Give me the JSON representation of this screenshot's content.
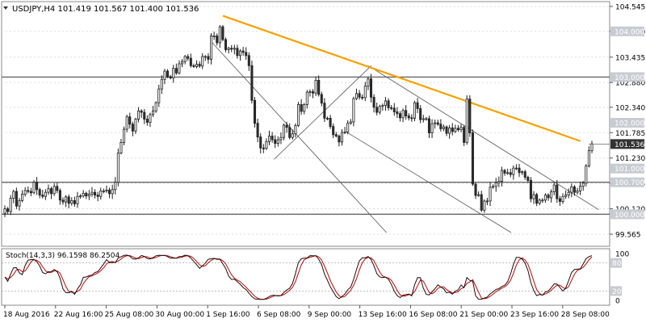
{
  "symbol_header": "USDJPY,H4  101.419 101.567 101.400 101.536",
  "stoch_header": "Stoch(14,3,3) 96.1598 86.2504",
  "colors": {
    "candle_up": "#ffffff",
    "candle_down": "#2f2f2f",
    "candle_outline": "#1e1e1e",
    "trendline": "#f2a300",
    "channel": "#555555",
    "hline": "#666666",
    "price_label_bg": "#c8ccd2",
    "current_label_bg": "#333333",
    "stoch_main": "#111111",
    "stoch_signal": "#cc0000",
    "grid": "#d9dde3"
  },
  "chart_data": [
    {
      "type": "candlestick",
      "title": "USDJPY,H4",
      "ylim": [
        99.3,
        104.65
      ],
      "grid": true,
      "y_ticks": [
        "104.545",
        "104.000",
        "103.435",
        "102.880",
        "102.340",
        "101.785",
        "101.230",
        "100.675",
        "100.120",
        "99.565"
      ],
      "x_ticks": [
        "18 Aug 2016",
        "22 Aug 16:00",
        "25 Aug 08:00",
        "30 Aug 00:00",
        "1 Sep 16:00",
        "6 Sep 08:00",
        "9 Sep 00:00",
        "13 Sep 16:00",
        "16 Sep 08:00",
        "21 Sep 00:00",
        "23 Sep 16:00",
        "28 Sep 08:00"
      ],
      "current_price": "101.536",
      "price_levels": [
        {
          "label": "104.000",
          "value": 104.0,
          "line": false
        },
        {
          "label": "103.000",
          "value": 103.0,
          "line": true
        },
        {
          "label": "102.000",
          "value": 102.0,
          "line": false
        },
        {
          "label": "101.000",
          "value": 101.0,
          "line": false
        },
        {
          "label": "100.700",
          "value": 100.7,
          "line": true
        },
        {
          "label": "100.000",
          "value": 100.0,
          "line": true
        }
      ],
      "trendline": {
        "x": [
          0.364,
          0.952
        ],
        "y": [
          104.34,
          101.6
        ]
      },
      "channels": [
        {
          "x": [
            0.343,
            0.633
          ],
          "y": [
            103.8,
            99.6
          ]
        },
        {
          "x": [
            0.448,
            0.608
          ],
          "y": [
            101.2,
            103.25
          ]
        },
        {
          "x": [
            0.603,
            0.982
          ],
          "y": [
            103.25,
            100.1
          ]
        },
        {
          "x": [
            0.567,
            0.838
          ],
          "y": [
            101.8,
            99.6
          ]
        }
      ],
      "close": [
        100.12,
        100.06,
        100.35,
        100.5,
        100.18,
        100.3,
        100.44,
        100.52,
        100.5,
        100.47,
        100.7,
        100.54,
        100.42,
        100.39,
        100.48,
        100.56,
        100.45,
        100.61,
        100.52,
        100.31,
        100.27,
        100.38,
        100.24,
        100.3,
        100.23,
        100.39,
        100.4,
        100.46,
        100.4,
        100.44,
        100.48,
        100.42,
        100.39,
        100.51,
        100.51,
        100.53,
        100.45,
        100.54,
        100.7,
        101.34,
        101.57,
        101.86,
        102.13,
        101.97,
        101.82,
        102.08,
        102.26,
        102.23,
        102.08,
        102.01,
        102.18,
        102.26,
        102.44,
        102.74,
        102.95,
        103.13,
        103.01,
        102.98,
        103.19,
        103.09,
        103.29,
        103.34,
        103.45,
        103.41,
        103.25,
        103.23,
        103.28,
        103.24,
        103.45,
        103.45,
        103.39,
        103.9,
        103.9,
        103.75,
        104.1,
        103.82,
        103.6,
        103.63,
        103.61,
        103.63,
        103.47,
        103.57,
        103.54,
        103.47,
        103.25,
        102.49,
        101.99,
        101.69,
        101.45,
        101.44,
        101.59,
        101.71,
        101.63,
        101.55,
        101.63,
        101.68,
        101.95,
        101.9,
        101.68,
        101.76,
        101.94,
        102.4,
        102.25,
        102.4,
        102.67,
        102.68,
        102.65,
        102.93,
        102.62,
        102.43,
        102.1,
        102.1,
        101.92,
        101.74,
        101.71,
        101.58,
        101.79,
        101.8,
        101.99,
        102.02,
        102.53,
        102.64,
        102.56,
        102.55,
        102.8,
        102.96,
        102.56,
        102.34,
        102.23,
        102.36,
        102.38,
        102.48,
        102.33,
        102.32,
        102.24,
        102.2,
        102.11,
        102.27,
        102.15,
        102.11,
        102.1,
        102.44,
        102.31,
        102.07,
        102.09,
        102.09,
        101.78,
        101.98,
        102.0,
        101.97,
        101.87,
        101.91,
        101.77,
        101.89,
        101.81,
        101.88,
        101.85,
        101.9,
        101.57,
        102.52,
        101.78,
        100.66,
        100.41,
        100.43,
        100.09,
        100.29,
        100.29,
        100.59,
        100.61,
        100.69,
        100.72,
        100.96,
        100.9,
        100.91,
        100.87,
        101.01,
        101.01,
        100.91,
        100.93,
        100.81,
        100.74,
        100.34,
        100.43,
        100.24,
        100.31,
        100.31,
        100.42,
        100.36,
        100.49,
        100.64,
        100.34,
        100.28,
        100.39,
        100.42,
        100.48,
        100.6,
        100.48,
        100.51,
        100.61,
        100.68,
        101.06,
        101.39,
        101.54
      ],
      "stoch_ylim": [
        0,
        100
      ],
      "stoch_ticks": [
        "100",
        "80",
        "20",
        "0"
      ]
    }
  ]
}
